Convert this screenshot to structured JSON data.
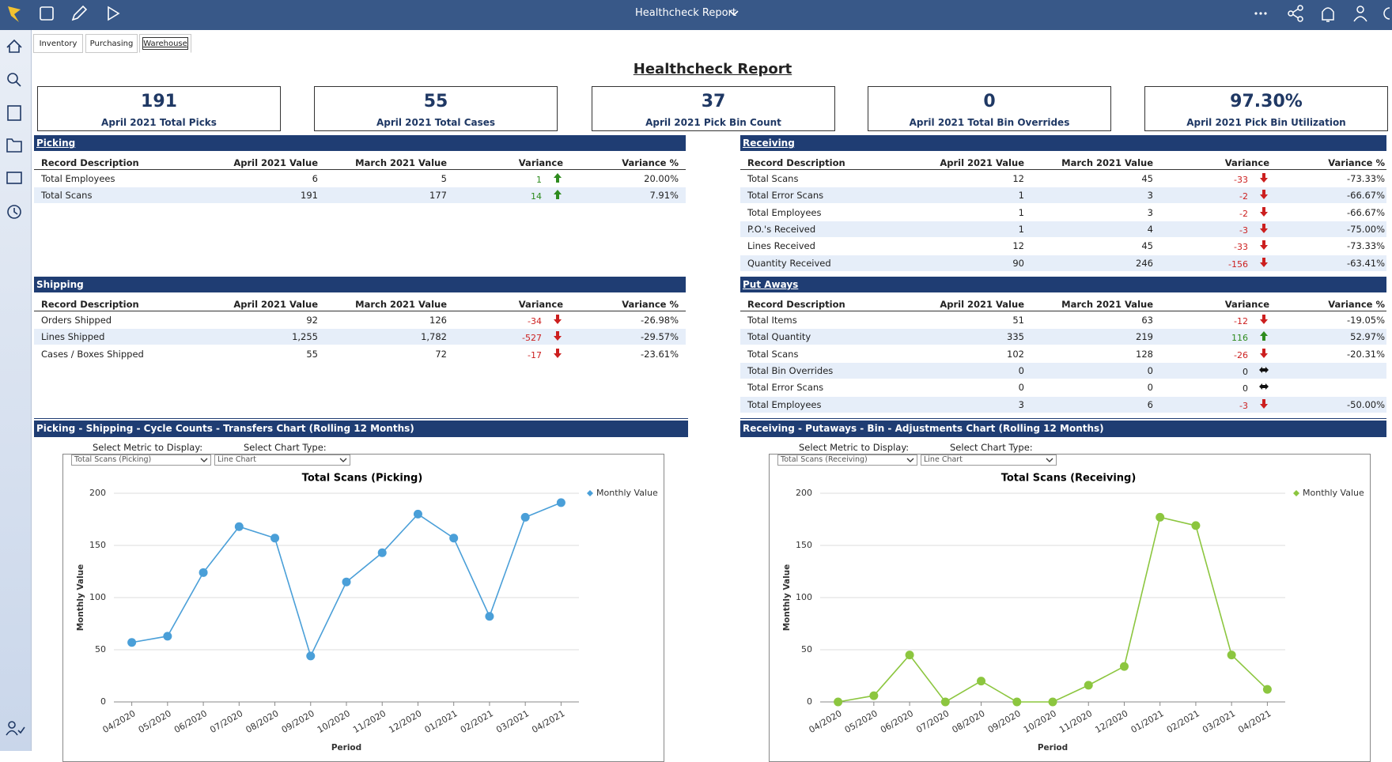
{
  "app": {
    "title": "Healthcheck Report"
  },
  "tabs": [
    "Inventory",
    "Purchasing",
    "Warehouse"
  ],
  "report_title": "Healthcheck Report",
  "kpis": [
    {
      "value": "191",
      "label": "April 2021 Total Picks"
    },
    {
      "value": "55",
      "label": "April 2021 Total Cases"
    },
    {
      "value": "37",
      "label": "April 2021 Pick Bin Count"
    },
    {
      "value": "0",
      "label": "April 2021 Total Bin Overrides"
    },
    {
      "value": "97.30%",
      "label": "April 2021 Pick Bin Utilization"
    }
  ],
  "tables": [
    {
      "title": "Picking",
      "columns": [
        "Record Description",
        "April 2021 Value",
        "March 2021 Value",
        "Variance",
        "Variance %"
      ],
      "rows": [
        [
          "Total Employees",
          "6",
          "5",
          "1",
          "20.00%"
        ],
        [
          "Total Scans",
          "191",
          "177",
          "14",
          "7.91%"
        ]
      ],
      "trends": [
        "up",
        "up"
      ]
    },
    {
      "title": "Receiving",
      "columns": [
        "Record Description",
        "April 2021 Value",
        "March 2021 Value",
        "Variance",
        "Variance %"
      ],
      "rows": [
        [
          "Total Scans",
          "12",
          "45",
          "-33",
          "-73.33%"
        ],
        [
          "Total Error Scans",
          "1",
          "3",
          "-2",
          "-66.67%"
        ],
        [
          "Total Employees",
          "1",
          "3",
          "-2",
          "-66.67%"
        ],
        [
          "P.O.'s Received",
          "1",
          "4",
          "-3",
          "-75.00%"
        ],
        [
          "Lines Received",
          "12",
          "45",
          "-33",
          "-73.33%"
        ],
        [
          "Quantity Received",
          "90",
          "246",
          "-156",
          "-63.41%"
        ]
      ],
      "trends": [
        "down",
        "down",
        "down",
        "down",
        "down",
        "down"
      ]
    },
    {
      "title": "Shipping",
      "columns": [
        "Record Description",
        "April 2021 Value",
        "March 2021 Value",
        "Variance",
        "Variance %"
      ],
      "rows": [
        [
          "Orders Shipped",
          "92",
          "126",
          "-34",
          "-26.98%"
        ],
        [
          "Lines Shipped",
          "1,255",
          "1,782",
          "-527",
          "-29.57%"
        ],
        [
          "Cases / Boxes Shipped",
          "55",
          "72",
          "-17",
          "-23.61%"
        ]
      ],
      "trends": [
        "down",
        "down",
        "down"
      ]
    },
    {
      "title": "Put Aways",
      "columns": [
        "Record Description",
        "April 2021 Value",
        "March 2021 Value",
        "Variance",
        "Variance %"
      ],
      "rows": [
        [
          "Total Items",
          "51",
          "63",
          "-12",
          "-19.05%"
        ],
        [
          "Total Quantity",
          "335",
          "219",
          "116",
          "52.97%"
        ],
        [
          "Total Scans",
          "102",
          "128",
          "-26",
          "-20.31%"
        ],
        [
          "Total Bin Overrides",
          "0",
          "0",
          "0"
        ],
        [
          "Total Error Scans",
          "0",
          "0",
          "0"
        ],
        [
          "Total Employees",
          "3",
          "6",
          "-3",
          "-50.00%"
        ]
      ],
      "trends": [
        "down",
        "up",
        "down",
        "flat",
        "flat",
        "down"
      ]
    }
  ],
  "charts": [
    {
      "section_title": "Picking - Shipping - Cycle Counts - Transfers Chart (Rolling 12 Months)",
      "metric_label": "Select Metric to Display:",
      "metric_value": "Total Scans (Picking)",
      "type_label": "Select Chart Type:",
      "type_value": "Line Chart",
      "chart_data": {
        "type": "line",
        "title": "Total Scans (Picking)",
        "x_label": "Period",
        "y_label": "Monthly Value",
        "categories": [
          "04/2020",
          "05/2020",
          "06/2020",
          "07/2020",
          "08/2020",
          "09/2020",
          "10/2020",
          "11/2020",
          "12/2020",
          "01/2021",
          "02/2021",
          "03/2021",
          "04/2021"
        ],
        "series": [
          {
            "name": "Monthly Value",
            "color": "#4a9fd8",
            "values": [
              57,
              63,
              124,
              168,
              157,
              44,
              115,
              143,
              180,
              157,
              82,
              177,
              191
            ]
          }
        ],
        "ylim": [
          0,
          200
        ],
        "yticks": [
          0,
          50,
          100,
          150,
          200
        ],
        "grid": true,
        "legend": "top-right"
      }
    },
    {
      "section_title": "Receiving - Putaways - Bin - Adjustments Chart (Rolling 12 Months)",
      "metric_label": "Select Metric to Display:",
      "metric_value": "Total Scans (Receiving)",
      "type_label": "Select Chart Type:",
      "type_value": "Line Chart",
      "chart_data": {
        "type": "line",
        "title": "Total Scans (Receiving)",
        "x_label": "Period",
        "y_label": "Monthly Value",
        "categories": [
          "04/2020",
          "05/2020",
          "06/2020",
          "07/2020",
          "08/2020",
          "09/2020",
          "10/2020",
          "11/2020",
          "12/2020",
          "01/2021",
          "02/2021",
          "03/2021",
          "04/2021"
        ],
        "series": [
          {
            "name": "Monthly Value",
            "color": "#8cc63f",
            "values": [
              0,
              6,
              45,
              0,
              20,
              0,
              0,
              16,
              34,
              177,
              169,
              45,
              12
            ]
          }
        ],
        "ylim": [
          0,
          200
        ],
        "yticks": [
          0,
          50,
          100,
          150,
          200
        ],
        "grid": true,
        "legend": "top-right"
      }
    }
  ]
}
